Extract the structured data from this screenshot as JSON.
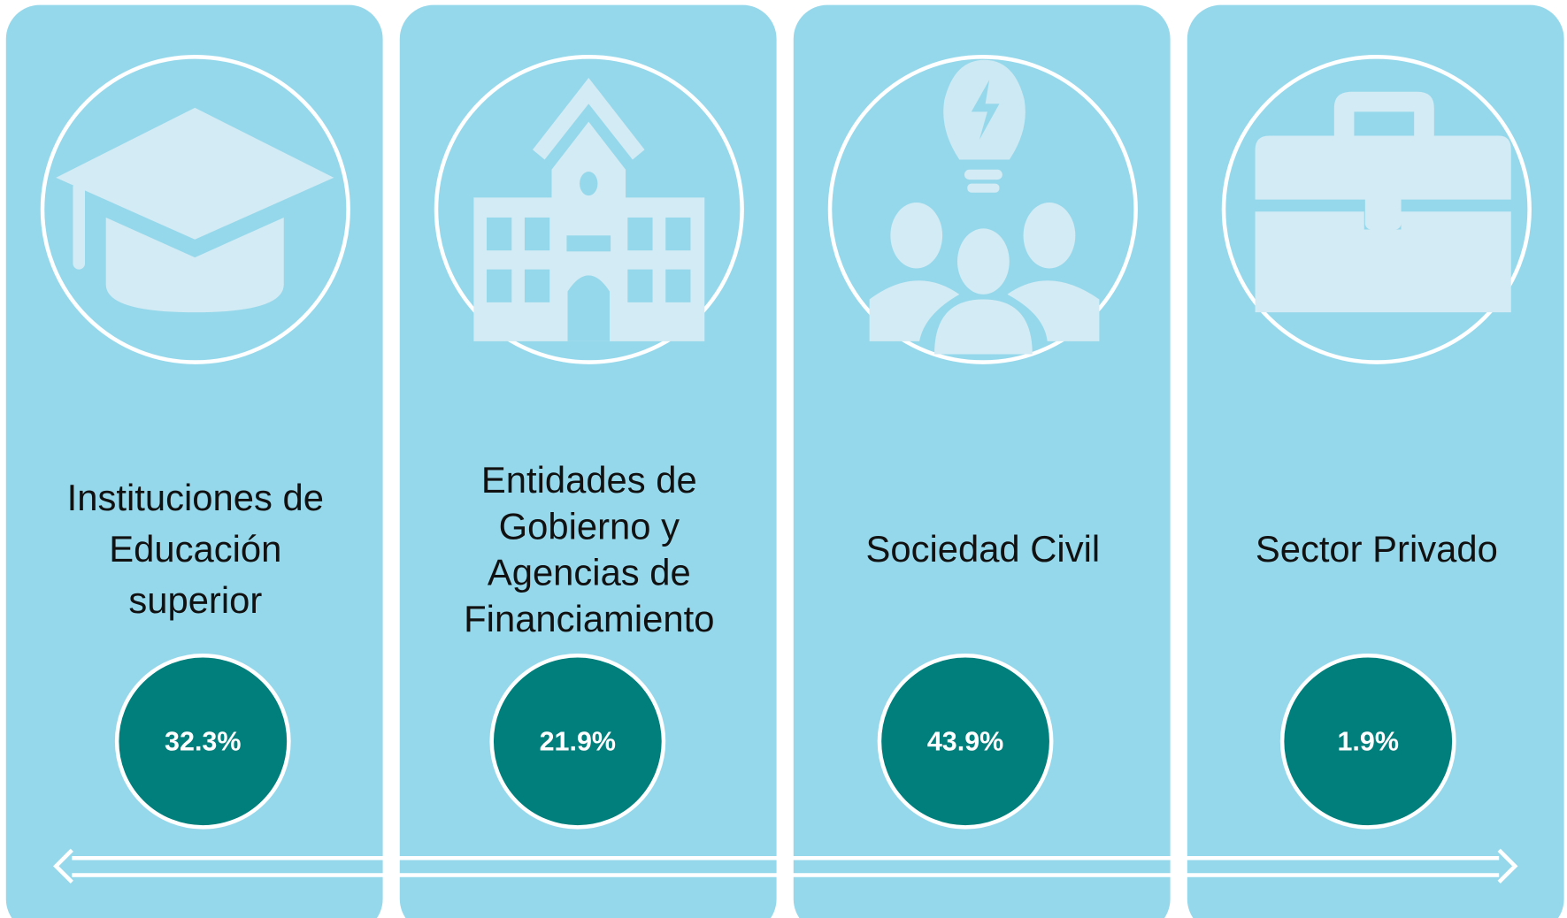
{
  "cards": [
    {
      "label": [
        "Instituciones de",
        "Educación",
        "superior"
      ],
      "value": "32.3%"
    },
    {
      "label": [
        "Entidades de",
        "Gobierno y",
        "Agencias de",
        "Financiamiento"
      ],
      "value": "21.9%"
    },
    {
      "label": [
        "Sociedad Civil"
      ],
      "value": "43.9%"
    },
    {
      "label": [
        "Sector Privado"
      ],
      "value": "1.9%"
    }
  ]
}
